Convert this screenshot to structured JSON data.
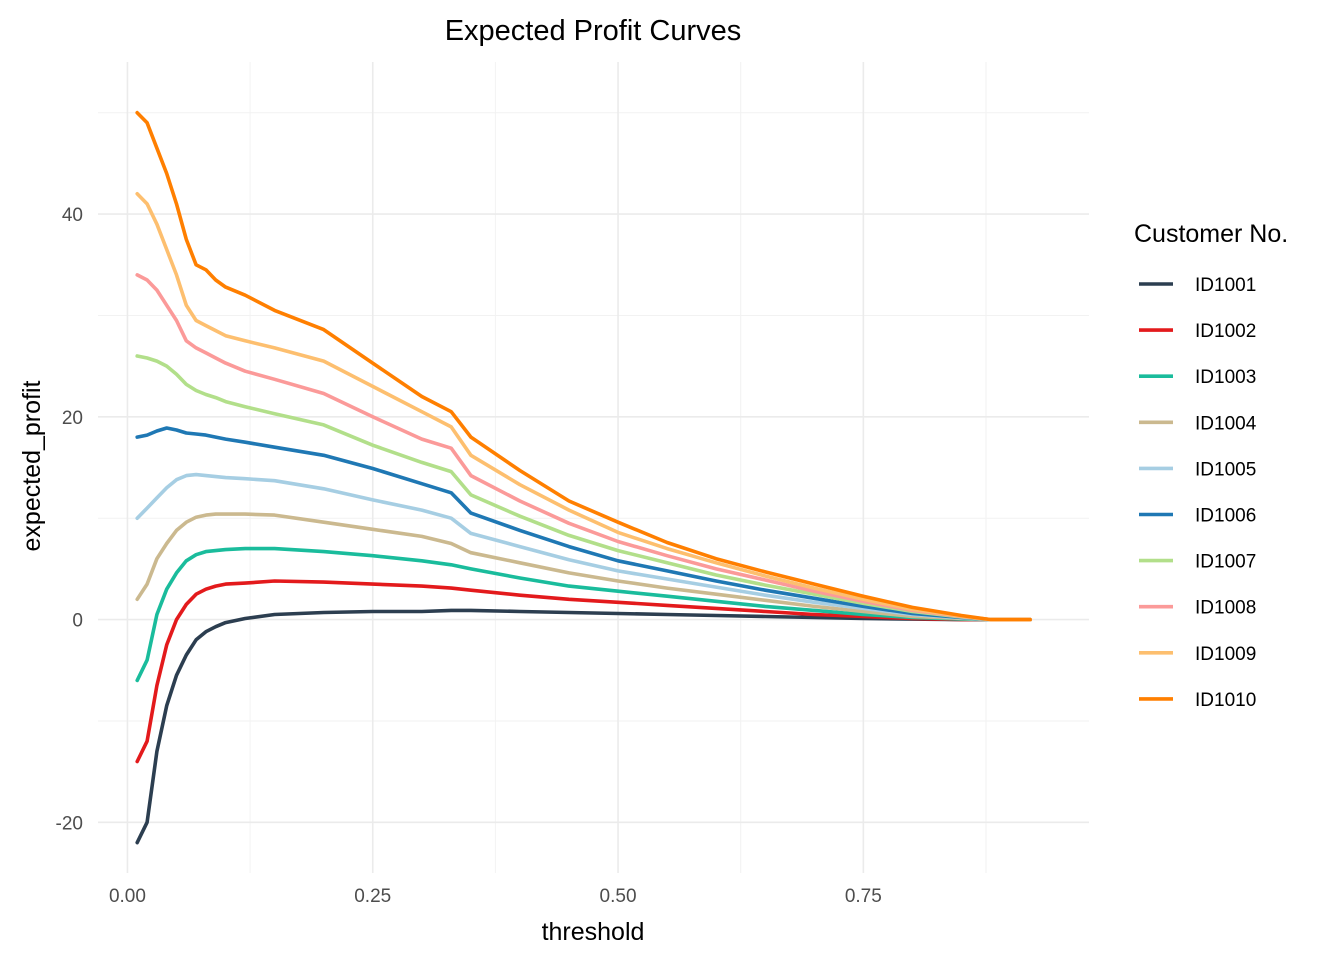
{
  "chart_data": {
    "type": "line",
    "title": "Expected Profit Curves",
    "xlabel": "threshold",
    "ylabel": "expected_profit",
    "xlim": [
      -0.03,
      0.98
    ],
    "ylim": [
      -25,
      55
    ],
    "x_ticks": [
      0.0,
      0.25,
      0.5,
      0.75
    ],
    "x_tick_labels": [
      "0.00",
      "0.25",
      "0.50",
      "0.75"
    ],
    "y_ticks": [
      -20,
      0,
      20,
      40
    ],
    "y_tick_labels": [
      "-20",
      "0",
      "20",
      "40"
    ],
    "grid": true,
    "legend": {
      "title": "Customer No.",
      "position": "right"
    },
    "x": [
      0.01,
      0.02,
      0.03,
      0.04,
      0.05,
      0.06,
      0.07,
      0.08,
      0.09,
      0.1,
      0.12,
      0.15,
      0.2,
      0.25,
      0.3,
      0.33,
      0.35,
      0.4,
      0.45,
      0.5,
      0.55,
      0.6,
      0.65,
      0.7,
      0.75,
      0.8,
      0.85,
      0.88,
      0.9,
      0.92
    ],
    "series": [
      {
        "name": "ID1001",
        "color": "#2c3e50",
        "values": [
          -22.0,
          -20.0,
          -13.0,
          -8.5,
          -5.5,
          -3.5,
          -2.0,
          -1.2,
          -0.7,
          -0.3,
          0.1,
          0.5,
          0.7,
          0.8,
          0.8,
          0.9,
          0.9,
          0.8,
          0.7,
          0.6,
          0.5,
          0.4,
          0.3,
          0.2,
          0.1,
          0.05,
          0.0,
          0.0,
          0.0,
          0.0
        ]
      },
      {
        "name": "ID1002",
        "color": "#e31a1c",
        "values": [
          -14.0,
          -12.0,
          -6.5,
          -2.5,
          0.0,
          1.5,
          2.5,
          3.0,
          3.3,
          3.5,
          3.6,
          3.8,
          3.7,
          3.5,
          3.3,
          3.1,
          2.9,
          2.4,
          2.0,
          1.7,
          1.4,
          1.1,
          0.8,
          0.5,
          0.3,
          0.1,
          0.0,
          0.0,
          0.0,
          0.0
        ]
      },
      {
        "name": "ID1003",
        "color": "#1abc9c",
        "values": [
          -6.0,
          -4.0,
          0.5,
          3.0,
          4.6,
          5.8,
          6.4,
          6.7,
          6.8,
          6.9,
          7.0,
          7.0,
          6.7,
          6.3,
          5.8,
          5.4,
          5.0,
          4.1,
          3.3,
          2.8,
          2.3,
          1.8,
          1.3,
          0.9,
          0.5,
          0.2,
          0.05,
          0.0,
          0.0,
          0.0
        ]
      },
      {
        "name": "ID1004",
        "color": "#cbb98f",
        "values": [
          2.0,
          3.5,
          6.0,
          7.5,
          8.8,
          9.6,
          10.1,
          10.3,
          10.4,
          10.4,
          10.4,
          10.3,
          9.6,
          8.9,
          8.2,
          7.5,
          6.6,
          5.6,
          4.6,
          3.8,
          3.1,
          2.5,
          1.9,
          1.3,
          0.8,
          0.3,
          0.1,
          0.0,
          0.0,
          0.0
        ]
      },
      {
        "name": "ID1005",
        "color": "#a6cee3",
        "values": [
          10.0,
          11.0,
          12.0,
          13.0,
          13.8,
          14.2,
          14.3,
          14.2,
          14.1,
          14.0,
          13.9,
          13.7,
          12.9,
          11.8,
          10.8,
          10.0,
          8.5,
          7.2,
          5.9,
          4.8,
          4.0,
          3.2,
          2.4,
          1.7,
          1.1,
          0.5,
          0.15,
          0.0,
          0.0,
          0.0
        ]
      },
      {
        "name": "ID1006",
        "color": "#1f78b4",
        "values": [
          18.0,
          18.2,
          18.6,
          18.9,
          18.7,
          18.4,
          18.3,
          18.2,
          18.0,
          17.8,
          17.5,
          17.0,
          16.2,
          14.9,
          13.4,
          12.5,
          10.5,
          8.8,
          7.2,
          5.8,
          4.8,
          3.8,
          2.9,
          2.1,
          1.3,
          0.6,
          0.2,
          0.0,
          0.0,
          0.0
        ]
      },
      {
        "name": "ID1007",
        "color": "#b2df8a",
        "values": [
          26.0,
          25.8,
          25.5,
          25.0,
          24.2,
          23.2,
          22.6,
          22.2,
          21.9,
          21.5,
          21.0,
          20.3,
          19.2,
          17.2,
          15.5,
          14.6,
          12.3,
          10.2,
          8.3,
          6.8,
          5.6,
          4.4,
          3.4,
          2.5,
          1.6,
          0.8,
          0.25,
          0.0,
          0.0,
          0.0
        ]
      },
      {
        "name": "ID1008",
        "color": "#fb9a99",
        "values": [
          34.0,
          33.5,
          32.5,
          31.0,
          29.5,
          27.5,
          26.8,
          26.3,
          25.8,
          25.3,
          24.5,
          23.7,
          22.3,
          20.0,
          17.8,
          16.9,
          14.2,
          11.7,
          9.5,
          7.7,
          6.3,
          5.0,
          3.9,
          2.8,
          1.8,
          0.9,
          0.3,
          0.0,
          0.0,
          0.0
        ]
      },
      {
        "name": "ID1009",
        "color": "#fdbf6f",
        "values": [
          42.0,
          41.0,
          39.0,
          36.5,
          34.0,
          31.0,
          29.5,
          29.0,
          28.5,
          28.0,
          27.5,
          26.8,
          25.5,
          23.0,
          20.5,
          19.0,
          16.2,
          13.3,
          10.8,
          8.6,
          7.0,
          5.6,
          4.3,
          3.1,
          2.0,
          1.0,
          0.35,
          0.0,
          0.0,
          0.0
        ]
      },
      {
        "name": "ID1010",
        "color": "#ff7f00",
        "values": [
          50.0,
          49.0,
          46.5,
          44.0,
          41.0,
          37.5,
          35.0,
          34.5,
          33.5,
          32.8,
          32.0,
          30.5,
          28.6,
          25.3,
          22.0,
          20.5,
          18.0,
          14.7,
          11.7,
          9.6,
          7.6,
          6.0,
          4.7,
          3.5,
          2.3,
          1.2,
          0.4,
          0.0,
          0.0,
          0.0
        ]
      }
    ]
  }
}
